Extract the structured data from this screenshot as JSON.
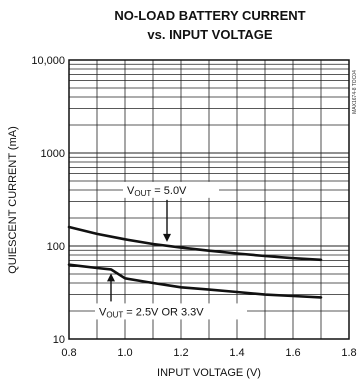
{
  "chart_data": {
    "type": "line",
    "title_lines": [
      "NO-LOAD BATTERY CURRENT",
      "vs. INPUT VOLTAGE"
    ],
    "xlabel": "INPUT VOLTAGE (V)",
    "ylabel": "QUIESCENT CURRENT (mA)",
    "xlim": [
      0.8,
      1.8
    ],
    "ylim": [
      10,
      10000
    ],
    "yscale": "log",
    "x_ticks": [
      "0.8",
      "1.0",
      "1.2",
      "1.4",
      "1.6",
      "1.8"
    ],
    "y_ticks": [
      "10",
      "100",
      "1000",
      "10,000"
    ],
    "grid": true,
    "side_note": "MAX1674-8 TOC04",
    "series": [
      {
        "x": [
          0.8,
          0.9,
          1.0,
          1.1,
          1.2,
          1.3,
          1.4,
          1.5,
          1.6,
          1.7
        ],
        "y": [
          160,
          135,
          118,
          105,
          96,
          89,
          83,
          78,
          74,
          71
        ]
      },
      {
        "x": [
          0.8,
          0.9,
          0.95,
          1.0,
          1.1,
          1.2,
          1.3,
          1.4,
          1.5,
          1.6,
          1.7
        ],
        "y": [
          63,
          58,
          56,
          45,
          40,
          36,
          34,
          32,
          30,
          29,
          28
        ]
      }
    ],
    "annotations": [
      {
        "label": "V",
        "sub": "OUT",
        "text": " = 5.0V",
        "target_series": 0,
        "target_x": 1.15
      },
      {
        "label": "V",
        "sub": "OUT",
        "text": " = 2.5V OR 3.3V",
        "target_series": 1,
        "target_x": 0.95
      }
    ]
  }
}
